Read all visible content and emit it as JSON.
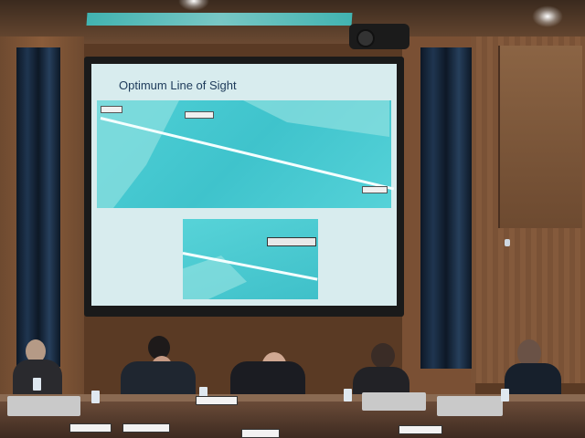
{
  "slide": {
    "title": "Optimum Line of Sight"
  },
  "colors": {
    "map_water": "#3fc3cc",
    "slide_background": "#d8ecee",
    "wood": "#7a5236",
    "curtain": "#1f3550"
  },
  "scene": {
    "people_at_desk": 6
  }
}
